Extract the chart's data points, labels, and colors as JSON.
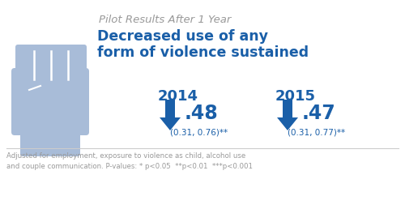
{
  "bg_color": "#ffffff",
  "title_italic": "Pilot Results After 1 Year",
  "title_bold": "Decreased use of any\nform of violence sustained",
  "title_italic_color": "#999999",
  "title_bold_color": "#1a5fa8",
  "year1": "2014",
  "year2": "2015",
  "value1": ".48",
  "value2": ".47",
  "ci1": "(0.31, 0.76)**",
  "ci2": "(0.31, 0.77)**",
  "data_color": "#1a5fa8",
  "fist_color": "#a8bcd8",
  "footnote_line1": "Adjusted for employment, exposure to violence as child, alcohol use",
  "footnote_line2": "and couple communication. P-values: * p<0.05  **p<0.01  ***p<0.001",
  "footnote_color": "#999999",
  "sep_color": "#cccccc"
}
